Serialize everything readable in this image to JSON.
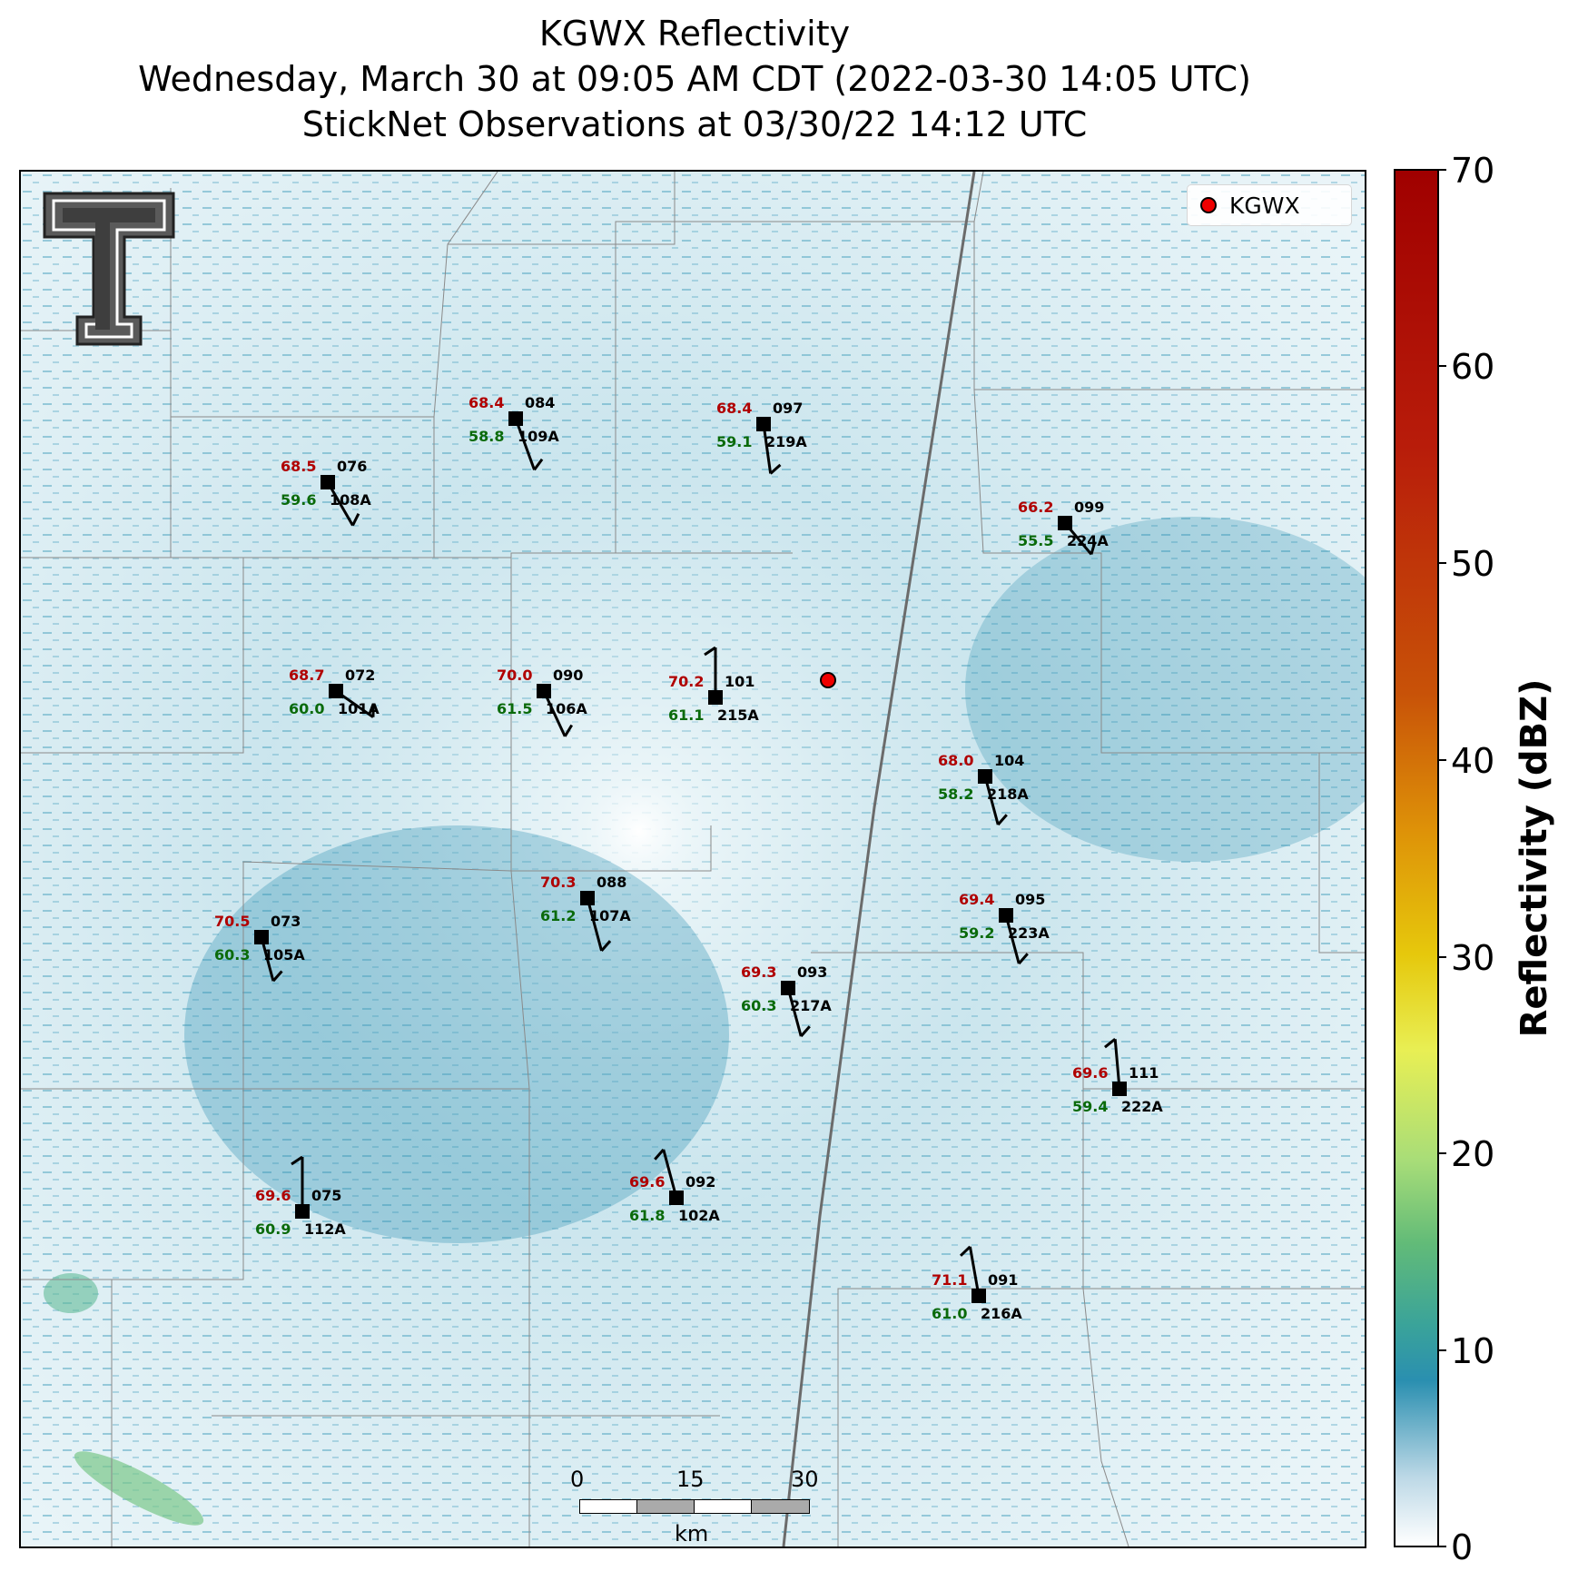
{
  "title": {
    "line1": "KGWX Reflectivity",
    "line2": "Wednesday, March 30 at 09:05 AM CDT (2022-03-30 14:05 UTC)",
    "line3": "StickNet Observations at 03/30/22 14:12 UTC"
  },
  "legend": {
    "label": "KGWX",
    "marker_color": "#ee0000"
  },
  "colorbar": {
    "label": "Reflectivity (dBZ)",
    "ticks": [
      "70",
      "60",
      "50",
      "40",
      "30",
      "20",
      "10",
      "0"
    ],
    "range": [
      0,
      70
    ]
  },
  "scalebar": {
    "ticks": [
      "0",
      "15",
      "30"
    ],
    "unit": "km"
  },
  "logo": {
    "name": "Texas Tech Double T"
  },
  "radar_site": {
    "id": "KGWX"
  },
  "stations": [
    {
      "id": "084",
      "probe": "109A",
      "temp": "68.4",
      "dew": "58.8"
    },
    {
      "id": "097",
      "probe": "219A",
      "temp": "68.4",
      "dew": "59.1"
    },
    {
      "id": "076",
      "probe": "108A",
      "temp": "68.5",
      "dew": "59.6"
    },
    {
      "id": "099",
      "probe": "224A",
      "temp": "66.2",
      "dew": "55.5"
    },
    {
      "id": "072",
      "probe": "101A",
      "temp": "68.7",
      "dew": "60.0"
    },
    {
      "id": "090",
      "probe": "106A",
      "temp": "70.0",
      "dew": "61.5"
    },
    {
      "id": "101",
      "probe": "215A",
      "temp": "70.2",
      "dew": "61.1"
    },
    {
      "id": "104",
      "probe": "218A",
      "temp": "68.0",
      "dew": "58.2"
    },
    {
      "id": "088",
      "probe": "107A",
      "temp": "70.3",
      "dew": "61.2"
    },
    {
      "id": "095",
      "probe": "223A",
      "temp": "69.4",
      "dew": "59.2"
    },
    {
      "id": "073",
      "probe": "105A",
      "temp": "70.5",
      "dew": "60.3"
    },
    {
      "id": "093",
      "probe": "217A",
      "temp": "69.3",
      "dew": "60.3"
    },
    {
      "id": "111",
      "probe": "222A",
      "temp": "69.6",
      "dew": "59.4"
    },
    {
      "id": "075",
      "probe": "112A",
      "temp": "69.6",
      "dew": "60.9"
    },
    {
      "id": "092",
      "probe": "102A",
      "temp": "69.6",
      "dew": "61.8"
    },
    {
      "id": "091",
      "probe": "216A",
      "temp": "71.1",
      "dew": "61.0"
    }
  ]
}
